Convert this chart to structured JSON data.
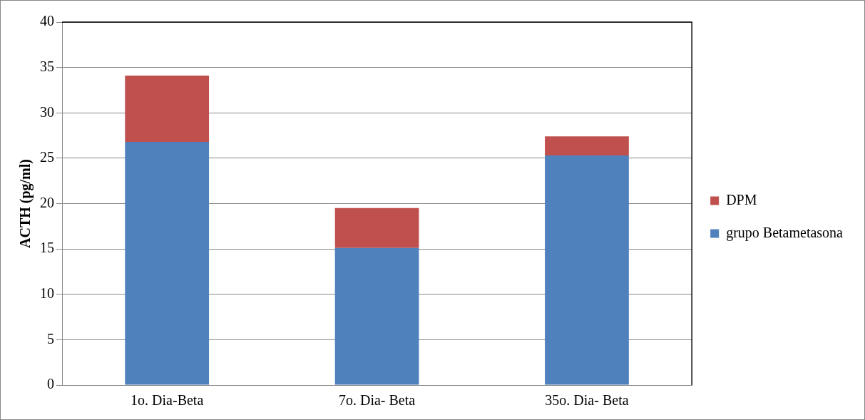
{
  "chart_data": {
    "type": "bar",
    "stacked": true,
    "ylabel": "ACTH (pg/ml)",
    "categories": [
      "1o. Dia-Beta",
      "7o. Dia- Beta",
      "35o. Dia- Beta"
    ],
    "series": [
      {
        "name": "grupo Betametasona",
        "color": "#4f81bd",
        "values": [
          26.8,
          15.1,
          25.3
        ]
      },
      {
        "name": "DPM",
        "color": "#c0504d",
        "values": [
          7.3,
          4.4,
          2.1
        ]
      }
    ],
    "ylim": [
      0,
      40
    ],
    "yticks": [
      0,
      5,
      10,
      15,
      20,
      25,
      30,
      35,
      40
    ],
    "grid": "y",
    "legend": "right"
  }
}
